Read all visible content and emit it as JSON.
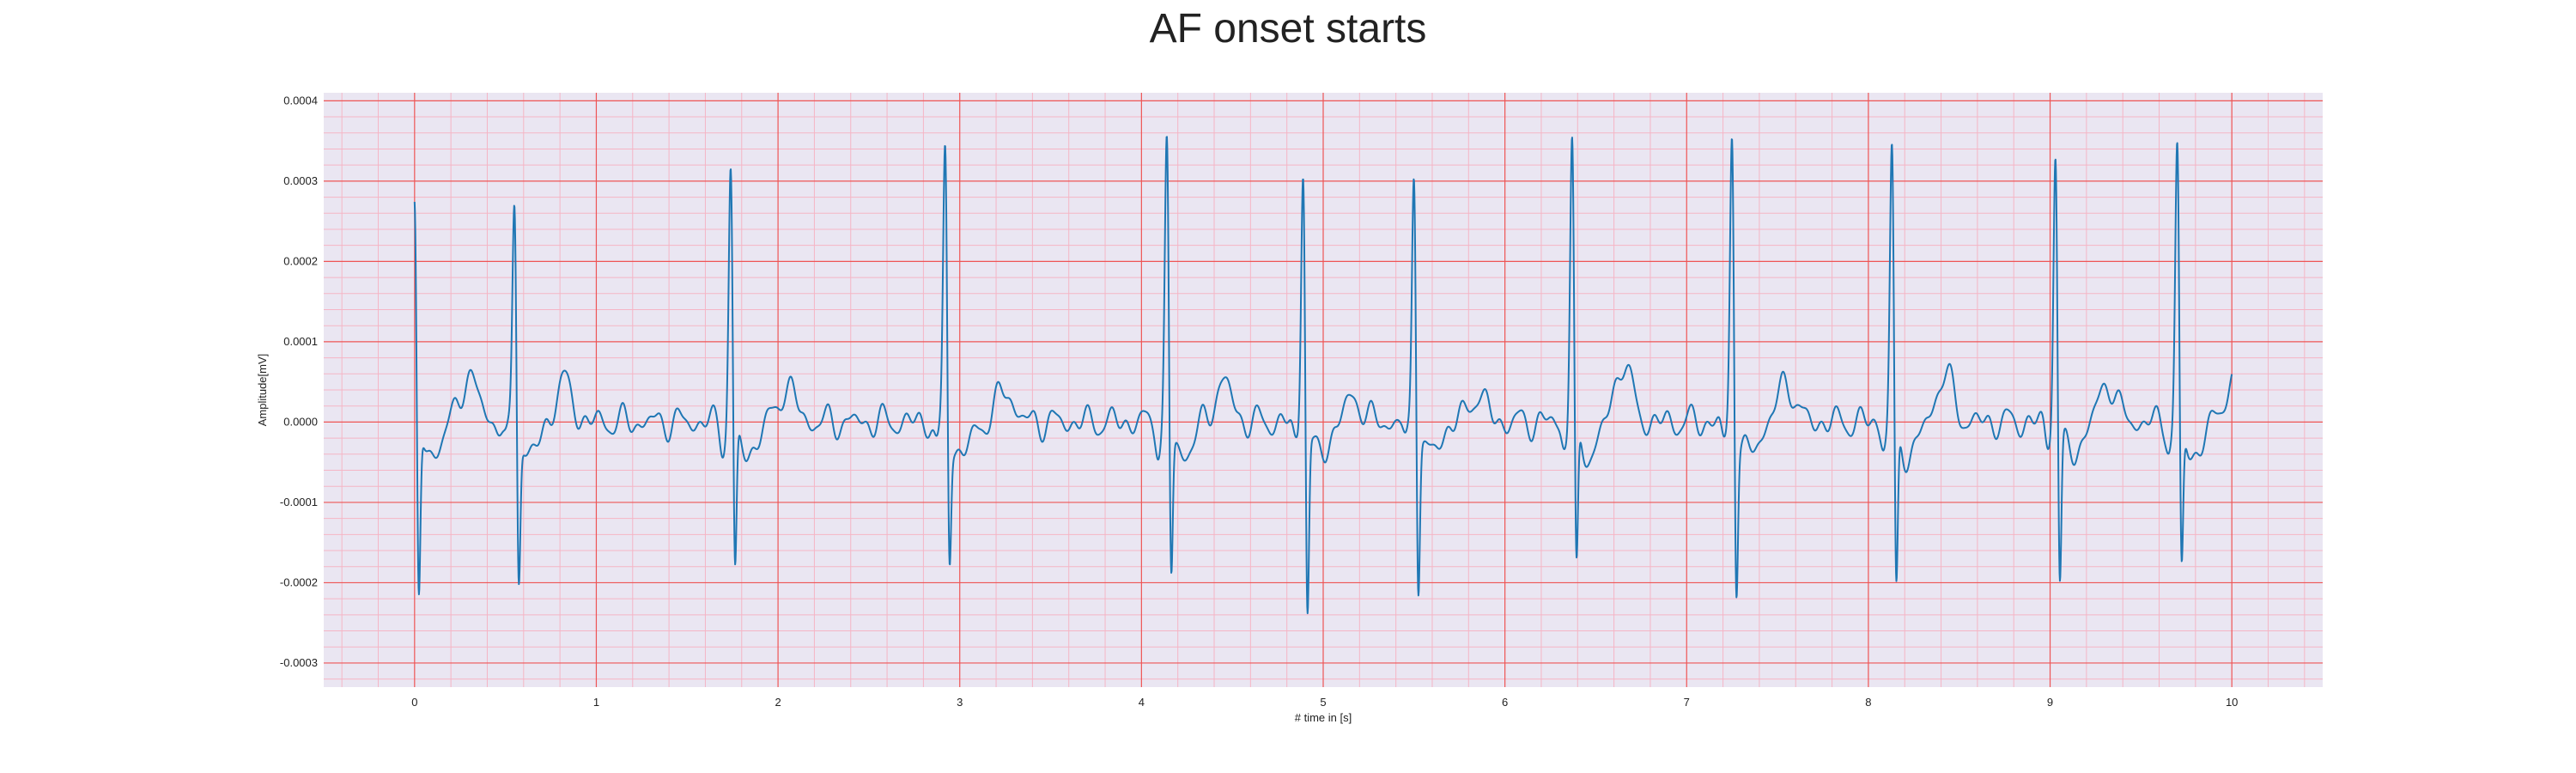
{
  "chart_data": {
    "type": "line",
    "title": "AF onset starts",
    "xlabel": "# time in [s]",
    "ylabel": "Amplitude[mV]",
    "xlim": [
      -0.5,
      10.5
    ],
    "ylim": [
      -0.00033,
      0.00041
    ],
    "xticks": [
      0,
      1,
      2,
      3,
      4,
      5,
      6,
      7,
      8,
      9,
      10
    ],
    "xtick_labels": [
      "0",
      "1",
      "2",
      "3",
      "4",
      "5",
      "6",
      "7",
      "8",
      "9",
      "10"
    ],
    "yticks": [
      -0.0003,
      -0.0002,
      -0.0001,
      0.0,
      0.0001,
      0.0002,
      0.0003,
      0.0004
    ],
    "ytick_labels": [
      "-0.0003",
      "-0.0002",
      "-0.0001",
      "0.0000",
      "0.0001",
      "0.0002",
      "0.0003",
      "0.0004"
    ],
    "grid": true,
    "minor_grid": true,
    "colors": {
      "background": "#eae6f2",
      "major_grid": "#ee5555",
      "minor_grid": "#f5b5c5",
      "line": "#1f77b4"
    },
    "series": [
      {
        "name": "",
        "r_peaks": [
          {
            "t": 0.0,
            "peak": 0.000285,
            "trough": -0.00028
          },
          {
            "t": 0.55,
            "peak": 0.00029,
            "trough": -0.00024
          },
          {
            "t": 1.74,
            "peak": 0.000335,
            "trough": -0.00025
          },
          {
            "t": 2.92,
            "peak": 0.00035,
            "trough": -0.000225
          },
          {
            "t": 4.14,
            "peak": 0.00036,
            "trough": -0.000255
          },
          {
            "t": 4.89,
            "peak": 0.00034,
            "trough": -0.000295
          },
          {
            "t": 5.5,
            "peak": 0.000335,
            "trough": -0.000255
          },
          {
            "t": 6.37,
            "peak": 0.000368,
            "trough": -0.00026
          },
          {
            "t": 7.25,
            "peak": 0.000378,
            "trough": -0.000265
          },
          {
            "t": 8.13,
            "peak": 0.000355,
            "trough": -0.00028
          },
          {
            "t": 9.03,
            "peak": 0.000358,
            "trough": -0.000262
          },
          {
            "t": 9.7,
            "peak": 0.000355,
            "trough": -0.000252
          }
        ],
        "t_waves": [
          {
            "t": 0.3,
            "amp": 6e-05
          },
          {
            "t": 0.82,
            "amp": 5e-05
          },
          {
            "t": 2.05,
            "amp": 4.5e-05
          },
          {
            "t": 3.25,
            "amp": 4e-05
          },
          {
            "t": 4.45,
            "amp": 5e-05
          },
          {
            "t": 5.17,
            "amp": 3e-05
          },
          {
            "t": 5.85,
            "amp": 3.5e-05
          },
          {
            "t": 6.65,
            "amp": 7.5e-05
          },
          {
            "t": 7.55,
            "amp": 5e-05
          },
          {
            "t": 8.42,
            "amp": 6e-05
          },
          {
            "t": 9.32,
            "amp": 5e-05
          },
          {
            "t": 10.0,
            "amp": 5e-05
          }
        ]
      }
    ]
  }
}
